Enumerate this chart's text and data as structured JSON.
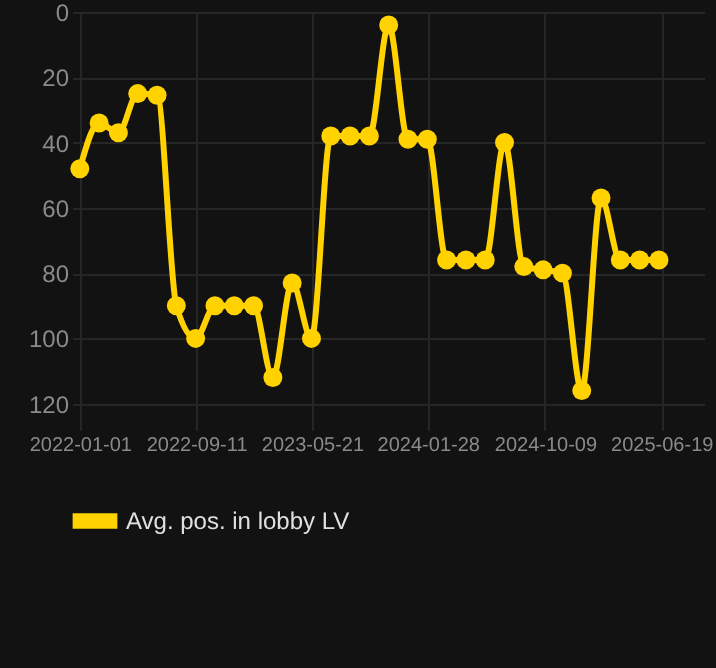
{
  "chart_data": {
    "type": "line",
    "x": [
      "2022-01-01",
      "2022-02-12",
      "2022-03-26",
      "2022-05-07",
      "2022-06-18",
      "2022-07-30",
      "2022-09-10",
      "2022-10-22",
      "2022-12-03",
      "2023-01-14",
      "2023-02-25",
      "2023-04-08",
      "2023-05-20",
      "2023-07-01",
      "2023-08-12",
      "2023-09-23",
      "2023-11-04",
      "2023-12-16",
      "2024-01-27",
      "2024-03-09",
      "2024-04-20",
      "2024-06-01",
      "2024-07-13",
      "2024-08-24",
      "2024-10-05",
      "2024-11-16",
      "2024-12-28",
      "2025-02-08",
      "2025-03-22",
      "2025-05-03",
      "2025-06-14"
    ],
    "series": [
      {
        "name": "Avg. pos. in lobby LV",
        "color": "#ffd200",
        "values": [
          48,
          34,
          37,
          25,
          25.5,
          90,
          100,
          90,
          90,
          90,
          112,
          83,
          100,
          38,
          38,
          38,
          4,
          39,
          39,
          76,
          76,
          76,
          40,
          78,
          79,
          80,
          116,
          57,
          76,
          76,
          76
        ]
      }
    ],
    "xlim": [
      "2021-12-15",
      "2025-09-20"
    ],
    "xticks": [
      "2022-01-01",
      "2022-09-11",
      "2023-05-21",
      "2024-01-28",
      "2024-10-09",
      "2025-06-19"
    ],
    "ylim": [
      125,
      0
    ],
    "yticks": [
      0,
      20,
      40,
      60,
      80,
      100,
      120
    ],
    "grid": true,
    "legend": "bottom",
    "marker": "circle",
    "line_style": "solid"
  }
}
